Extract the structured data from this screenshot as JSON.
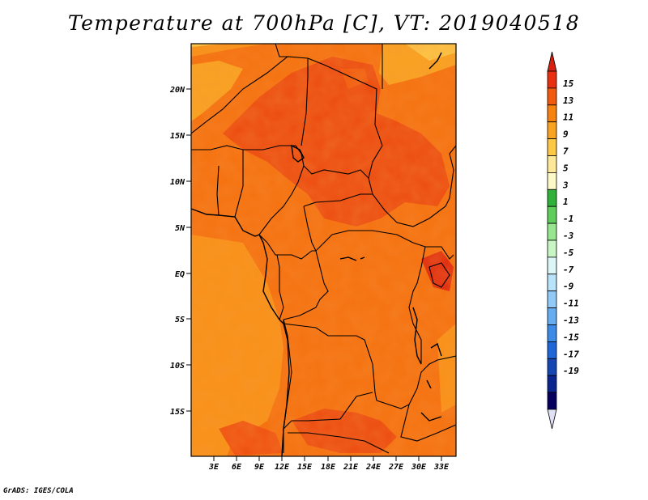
{
  "title": "Temperature at 700hPa [C], VT: 2019040518",
  "credit": "GrADS: IGES/COLA",
  "map": {
    "lat_labels": [
      "20N",
      "15N",
      "10N",
      "5N",
      "EQ",
      "5S",
      "10S",
      "15S"
    ],
    "lon_labels": [
      "3E",
      "6E",
      "9E",
      "12E",
      "15E",
      "18E",
      "21E",
      "24E",
      "27E",
      "30E",
      "33E"
    ]
  },
  "colorbar": {
    "labels": [
      "15",
      "13",
      "11",
      "9",
      "7",
      "5",
      "3",
      "1",
      "-1",
      "-3",
      "-5",
      "-7",
      "-9",
      "-11",
      "-13",
      "-15",
      "-17",
      "-19"
    ],
    "colors": [
      "#e8300f",
      "#f25a0e",
      "#f7820f",
      "#f9a320",
      "#fdc846",
      "#fde897",
      "#fdf8c8",
      "#2fb13a",
      "#5ecd5a",
      "#97e58e",
      "#c8f5c4",
      "#dbf6f7",
      "#b9e3fb",
      "#92caf7",
      "#67acf1",
      "#3c8be8",
      "#1f66d9",
      "#1546b4",
      "#0b2590",
      "#080060"
    ],
    "max_triangle_color": "#d62010",
    "min_triangle_color": "#e0e0f6"
  }
}
